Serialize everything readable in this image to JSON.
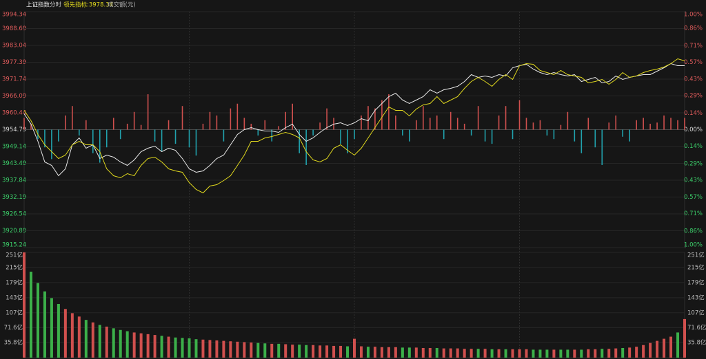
{
  "chart_data": [
    {
      "type": "line",
      "title": "上证指数",
      "subtitle": "分时",
      "series": [
        {
          "name": "上证指数",
          "color": "#e8e8e8",
          "values": [
            3960.09,
            3956.63,
            3950.87,
            3943.95,
            3942.8,
            3939.34,
            3941.65,
            3949.72,
            3952.02,
            3948.56,
            3949.72,
            3945.1,
            3946.26,
            3945.57,
            3943.95,
            3942.8,
            3944.64,
            3947.41,
            3948.56,
            3949.26,
            3947.41,
            3948.56,
            3947.87,
            3945.1,
            3941.65,
            3940.49,
            3940.95,
            3942.8,
            3945.1,
            3946.26,
            3949.72,
            3953.18,
            3954.79,
            3955.48,
            3954.79,
            3954.33,
            3954.33,
            3953.87,
            3955.48,
            3956.63,
            3953.18,
            3950.87,
            3952.02,
            3953.87,
            3955.48,
            3956.63,
            3957.1,
            3956.17,
            3957.1,
            3958.48,
            3957.79,
            3961.25,
            3963.55,
            3965.86,
            3967.01,
            3964.71,
            3963.55,
            3964.71,
            3965.86,
            3968.16,
            3967.01,
            3968.16,
            3968.63,
            3969.32,
            3970.93,
            3973.24,
            3972.32,
            3972.78,
            3972.32,
            3973.24,
            3972.78,
            3975.54,
            3976.24,
            3976.7,
            3975.08,
            3973.93,
            3973.24,
            3973.93,
            3973.24,
            3972.78,
            3973.24,
            3970.93,
            3971.62,
            3972.32,
            3970.47,
            3970.93,
            3972.78,
            3971.62,
            3972.32,
            3972.78,
            3973.24,
            3973.24,
            3974.39,
            3975.54,
            3976.93,
            3976.24,
            3976.24
          ]
        },
        {
          "name": "领先指标:3978.34",
          "color": "#e0d81e",
          "values": [
            3961.25,
            3957.79,
            3953.18,
            3949.72,
            3947.41,
            3945.1,
            3946.26,
            3949.72,
            3950.87,
            3949.72,
            3949.72,
            3947.41,
            3941.65,
            3939.34,
            3938.65,
            3940.03,
            3939.34,
            3942.8,
            3945.1,
            3945.57,
            3943.95,
            3941.65,
            3940.95,
            3940.49,
            3937.03,
            3934.73,
            3933.57,
            3935.88,
            3936.34,
            3937.73,
            3939.34,
            3942.8,
            3946.26,
            3950.87,
            3950.87,
            3952.02,
            3952.48,
            3953.18,
            3953.87,
            3953.18,
            3952.02,
            3947.41,
            3944.64,
            3943.95,
            3945.1,
            3948.56,
            3949.72,
            3947.87,
            3946.26,
            3948.56,
            3952.02,
            3955.48,
            3958.94,
            3962.4,
            3961.25,
            3961.25,
            3959.4,
            3961.71,
            3963.09,
            3963.55,
            3965.86,
            3963.55,
            3964.71,
            3965.86,
            3968.63,
            3970.93,
            3972.32,
            3970.93,
            3969.32,
            3971.62,
            3973.24,
            3971.62,
            3976.24,
            3976.93,
            3976.7,
            3974.62,
            3973.93,
            3973.24,
            3974.62,
            3973.24,
            3972.78,
            3972.32,
            3970.47,
            3970.93,
            3971.62,
            3970.01,
            3971.62,
            3973.93,
            3972.32,
            3972.78,
            3973.93,
            3974.62,
            3975.08,
            3975.77,
            3976.93,
            3978.54,
            3977.85
          ]
        }
      ],
      "strength": {
        "axis": "y2",
        "up_color": "#d0504e",
        "down_color": "#21a2ad",
        "values": [
          0.1,
          0.05,
          -0.08,
          -0.15,
          -0.25,
          -0.1,
          0.12,
          0.2,
          -0.05,
          0.08,
          -0.2,
          -0.28,
          -0.15,
          0.1,
          -0.08,
          0.05,
          0.15,
          0.04,
          0.3,
          -0.1,
          -0.18,
          0.08,
          -0.12,
          0.2,
          -0.15,
          -0.22,
          0.05,
          0.15,
          0.12,
          -0.1,
          0.18,
          0.22,
          0.1,
          0.05,
          -0.05,
          0.08,
          -0.1,
          0.03,
          0.15,
          0.22,
          -0.2,
          -0.3,
          -0.05,
          0.06,
          0.18,
          0.1,
          -0.12,
          -0.2,
          -0.08,
          0.12,
          0.2,
          0.18,
          0.25,
          0.3,
          0.12,
          -0.05,
          -0.1,
          0.08,
          0.2,
          0.1,
          0.12,
          -0.08,
          0.15,
          0.1,
          0.05,
          -0.05,
          0.2,
          -0.1,
          -0.12,
          0.12,
          0.2,
          -0.08,
          0.25,
          0.1,
          0.06,
          0.08,
          -0.05,
          -0.08,
          0.04,
          0.15,
          -0.1,
          -0.2,
          0.1,
          -0.15,
          -0.3,
          0.06,
          0.12,
          -0.06,
          -0.1,
          0.08,
          0.1,
          0.05,
          0.06,
          0.12,
          0.1,
          0.08,
          0.1
        ]
      },
      "ylim": [
        3915.24,
        3994.34
      ],
      "yticks": [
        3994.34,
        3988.69,
        3983.04,
        3977.39,
        3971.74,
        3966.09,
        3960.44,
        3954.79,
        3949.14,
        3943.49,
        3937.84,
        3932.19,
        3926.54,
        3920.89,
        3915.24
      ],
      "y2lim": [
        -1,
        1
      ],
      "y2ticks": [
        {
          "value": 1,
          "label": "1.00%"
        },
        {
          "value": 0.86,
          "label": "0.86%"
        },
        {
          "value": 0.71,
          "label": "0.71%"
        },
        {
          "value": 0.57,
          "label": "0.57%"
        },
        {
          "value": 0.43,
          "label": "0.43%"
        },
        {
          "value": 0.29,
          "label": "0.29%"
        },
        {
          "value": 0.14,
          "label": "0.14%"
        },
        {
          "value": 0,
          "label": "0.00%"
        },
        {
          "value": -0.14,
          "label": "0.14%"
        },
        {
          "value": -0.29,
          "label": "0.29%"
        },
        {
          "value": -0.43,
          "label": "0.43%"
        },
        {
          "value": -0.57,
          "label": "0.57%"
        },
        {
          "value": -0.71,
          "label": "0.71%"
        },
        {
          "value": -0.86,
          "label": "0.86%"
        },
        {
          "value": -1,
          "label": "1.00%"
        }
      ],
      "up_color": "#e05c5c",
      "down_color": "#3ccf6a",
      "flat_color": "#dddddd",
      "grid": true
    },
    {
      "type": "bar",
      "title": "成交额(元)",
      "up_color": "#d0504e",
      "down_color": "#3cb04a",
      "values": [
        251,
        205,
        178,
        158,
        142,
        128,
        116,
        106,
        98,
        90,
        84,
        78,
        74,
        70,
        66,
        63,
        60,
        58,
        56,
        54,
        52,
        50,
        48,
        47,
        46,
        44,
        43,
        42,
        41,
        40,
        39,
        38,
        37,
        36,
        35,
        34,
        33,
        33,
        32,
        31,
        31,
        30,
        30,
        29,
        29,
        28,
        28,
        27,
        45,
        27,
        26,
        26,
        25,
        25,
        25,
        24,
        24,
        24,
        23,
        23,
        23,
        22,
        22,
        22,
        21,
        21,
        21,
        21,
        20,
        20,
        20,
        20,
        20,
        20,
        19,
        19,
        19,
        19,
        19,
        19,
        19,
        19,
        20,
        20,
        21,
        21,
        22,
        23,
        24,
        26,
        30,
        35,
        40,
        45,
        50,
        60,
        92
      ],
      "ylim": [
        0,
        251
      ],
      "yticks": [
        {
          "value": 251,
          "label": "251亿"
        },
        {
          "value": 215,
          "label": "215亿"
        },
        {
          "value": 179,
          "label": "179亿"
        },
        {
          "value": 143,
          "label": "143亿"
        },
        {
          "value": 107,
          "label": "107亿"
        },
        {
          "value": 71.6,
          "label": "71.6亿"
        },
        {
          "value": 35.8,
          "label": "35.8亿"
        }
      ],
      "grid": true
    }
  ]
}
